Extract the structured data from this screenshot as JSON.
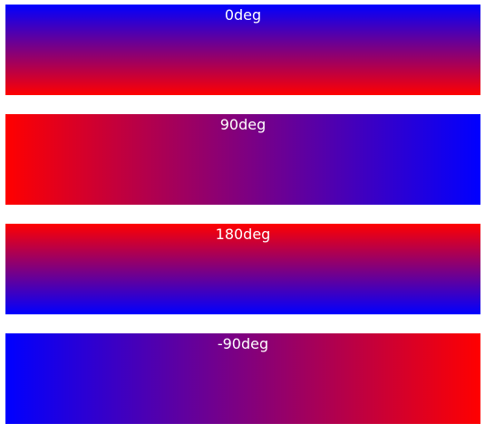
{
  "boxes": [
    {
      "label": "0deg"
    },
    {
      "label": "90deg"
    },
    {
      "label": "180deg"
    },
    {
      "label": "-90deg"
    }
  ]
}
